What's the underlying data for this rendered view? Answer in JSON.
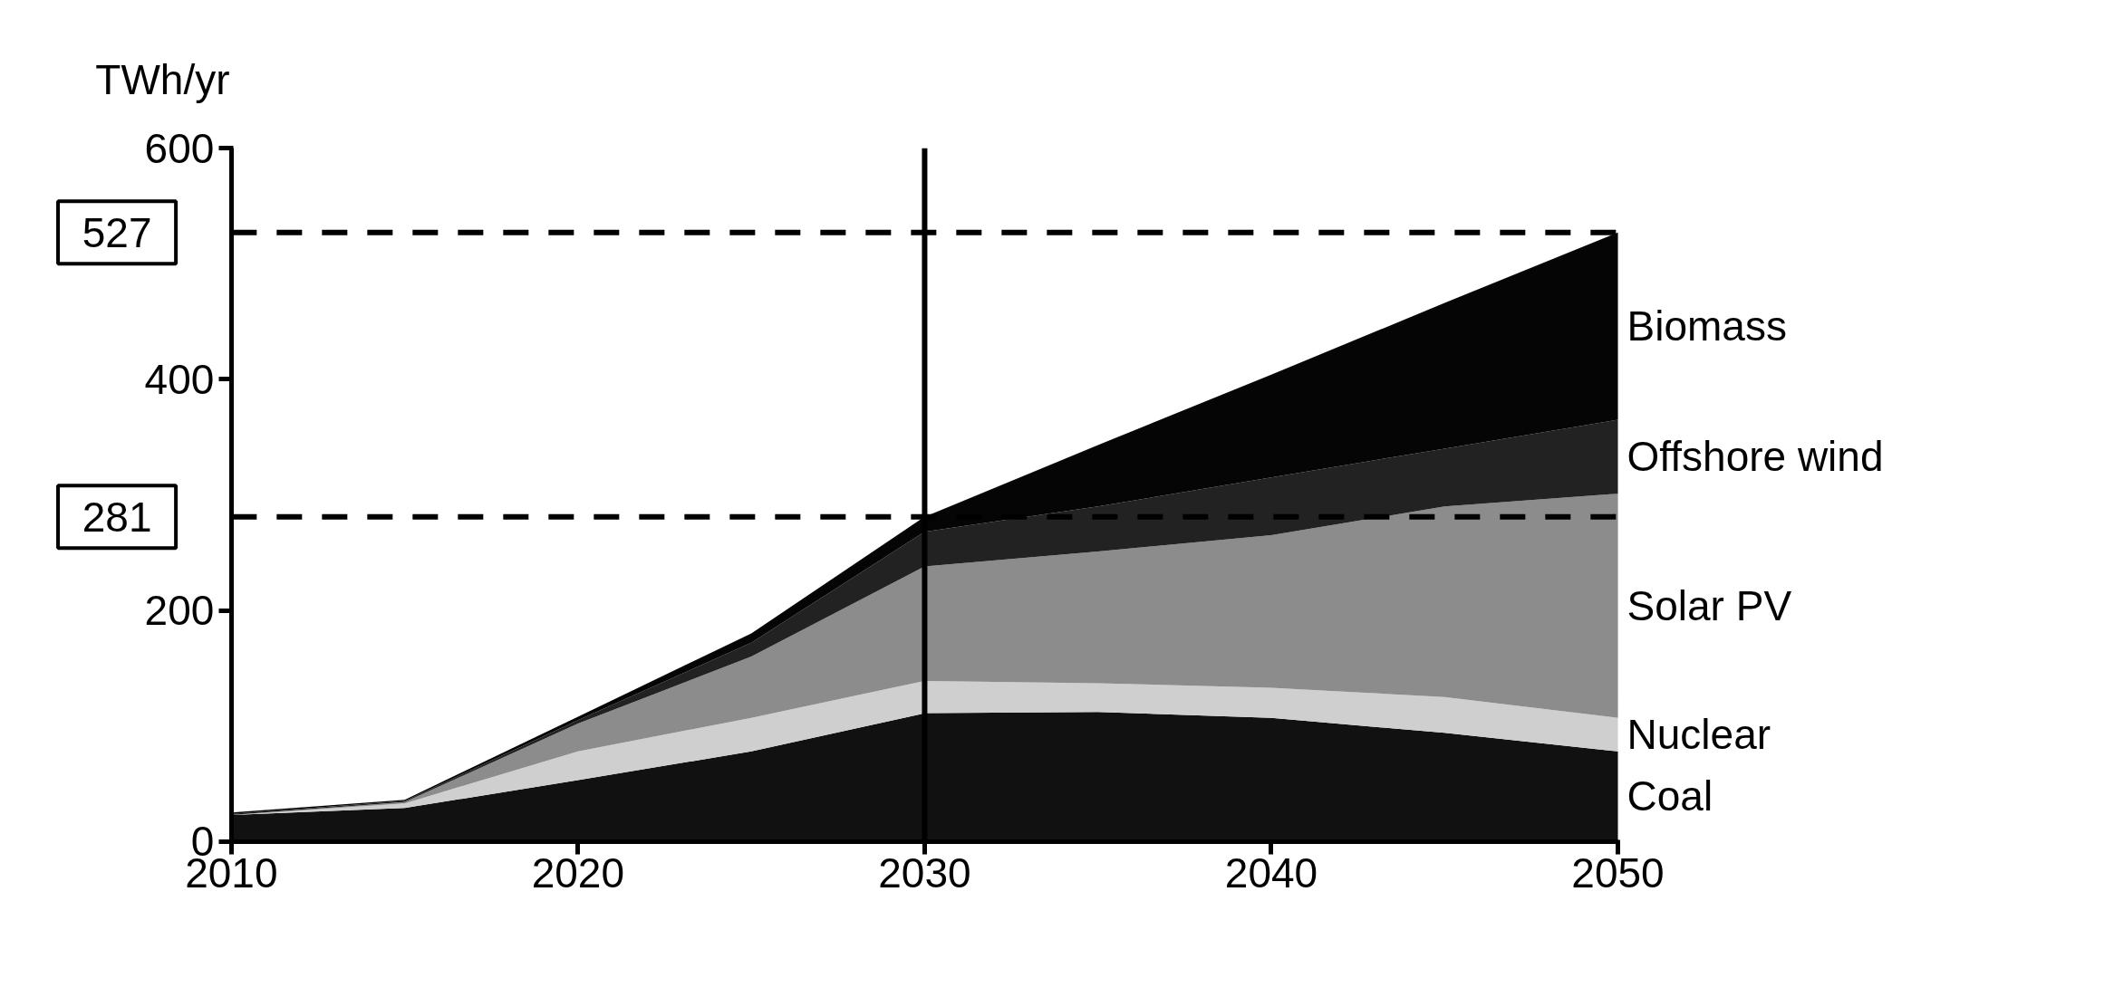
{
  "chart_data": {
    "type": "area",
    "stacked": true,
    "ylabel": "TWh/yr",
    "x": [
      2010,
      2015,
      2020,
      2025,
      2030,
      2035,
      2040,
      2045,
      2050
    ],
    "series": [
      {
        "name": "Coal",
        "color": "#111111",
        "values": [
          23,
          29,
          53,
          78,
          111,
          112,
          107,
          94,
          78
        ]
      },
      {
        "name": "Nuclear",
        "color": "#cfcfcf",
        "values": [
          0,
          4,
          25,
          29,
          28,
          25,
          26,
          31,
          29
        ]
      },
      {
        "name": "Solar PV",
        "color": "#8c8c8c",
        "values": [
          0,
          1,
          24,
          53,
          99,
          114,
          132,
          165,
          194
        ]
      },
      {
        "name": "Offshore wind",
        "color": "#222222",
        "values": [
          1,
          1,
          3,
          12,
          30,
          39,
          50,
          50,
          64
        ]
      },
      {
        "name": "Biomass",
        "color": "#050505",
        "values": [
          1,
          1,
          3,
          8,
          13,
          53,
          89,
          126,
          162
        ]
      }
    ],
    "xlim": [
      2010,
      2050
    ],
    "xticks": [
      2010,
      2020,
      2030,
      2040,
      2050
    ],
    "ylim": [
      0,
      600
    ],
    "yticks": [
      0,
      200,
      400,
      600
    ],
    "ref_lines": [
      {
        "axis": "y",
        "value": 527,
        "label": "527",
        "line_style": "dashed"
      },
      {
        "axis": "y",
        "value": 281,
        "label": "281",
        "line_style": "dashed"
      },
      {
        "axis": "x",
        "value": 2030,
        "label": null,
        "line_style": "solid"
      }
    ],
    "grid": false
  }
}
